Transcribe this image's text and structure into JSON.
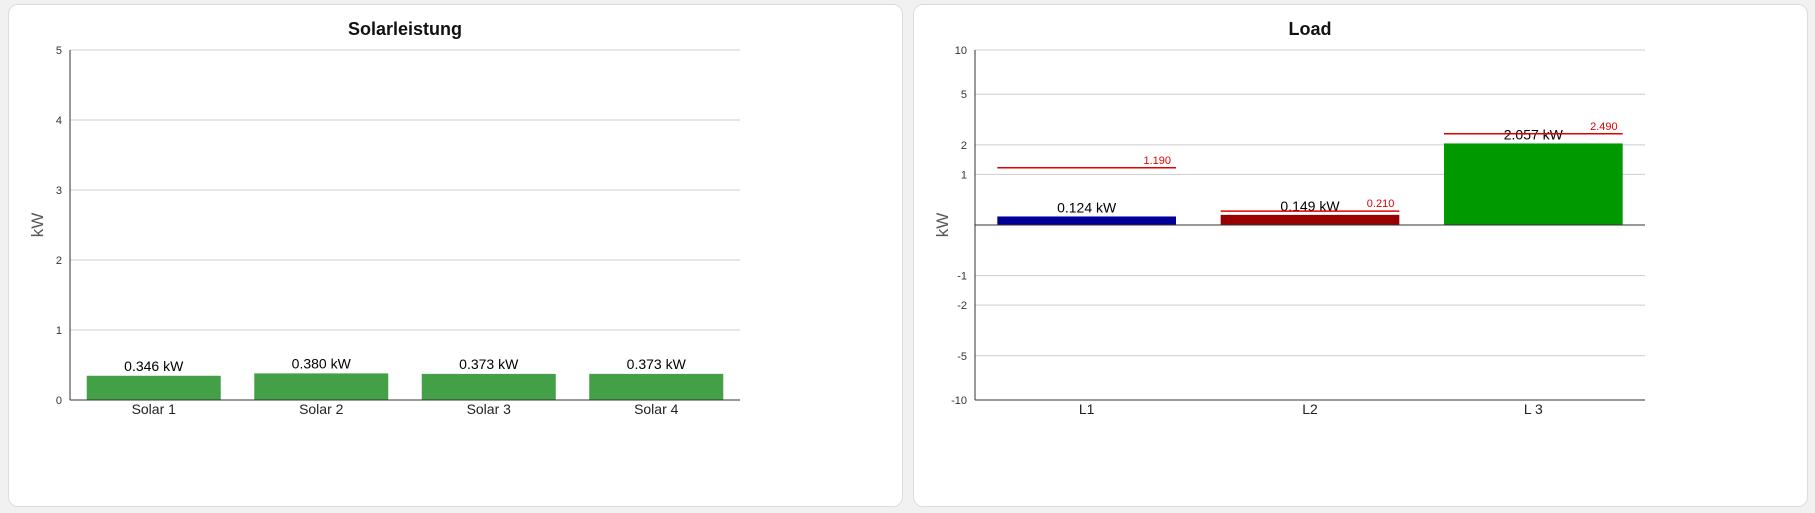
{
  "chart_data": [
    {
      "type": "bar",
      "title": "Solarleistung",
      "xlabel": "",
      "ylabel": "kW",
      "ylim": [
        0,
        5
      ],
      "yticks": [
        0,
        1,
        2,
        3,
        4,
        5
      ],
      "grid": true,
      "categories": [
        "Solar 1",
        "Solar 2",
        "Solar 3",
        "Solar 4"
      ],
      "values": [
        0.346,
        0.38,
        0.373,
        0.373
      ],
      "data_labels": [
        "0.346 kW",
        "0.380 kW",
        "0.373 kW",
        "0.373 kW"
      ],
      "bar_color": "#43a047"
    },
    {
      "type": "bar",
      "title": "Load",
      "xlabel": "",
      "ylabel": "kW",
      "ylim": [
        -10,
        10
      ],
      "yticks": [
        10,
        5,
        2,
        1,
        -1,
        -2,
        -5,
        -10
      ],
      "ytick_labels": [
        "10",
        "5",
        "2",
        "1",
        "-1",
        "-2",
        "-5",
        "-10"
      ],
      "grid": true,
      "categories": [
        "L1",
        "L2",
        "L 3"
      ],
      "values": [
        0.124,
        0.149,
        2.057
      ],
      "data_labels": [
        "0.124 kW",
        "0.149 kW",
        "2.057 kW"
      ],
      "bar_colors": [
        "#000099",
        "#990000",
        "#009900"
      ],
      "reference_values": [
        1.19,
        0.21,
        2.49
      ],
      "reference_labels": [
        "1.190",
        "0.210",
        "2.490"
      ],
      "reference_color": "#e00000"
    }
  ]
}
